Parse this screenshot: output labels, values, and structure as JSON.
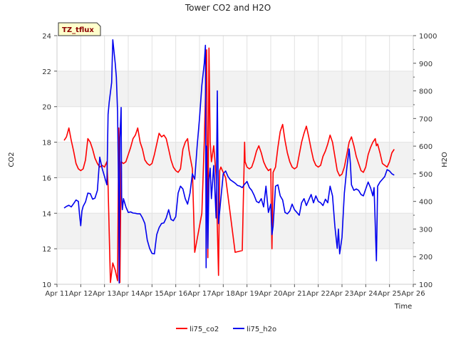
{
  "chart_data": {
    "type": "line",
    "title": "Tower CO2 and H2O",
    "badge": "TZ_tflux",
    "xlabel": "Time",
    "ylabel_left": "CO2",
    "ylabel_right": "H2O",
    "xlim": [
      0,
      15
    ],
    "ylim_left": [
      10,
      24
    ],
    "ylim_right": [
      100,
      1000
    ],
    "x_ticks": [
      {
        "pos": 0,
        "label": "Apr 11"
      },
      {
        "pos": 1,
        "label": "Apr 12"
      },
      {
        "pos": 2,
        "label": "Apr 13"
      },
      {
        "pos": 3,
        "label": "Apr 14"
      },
      {
        "pos": 4,
        "label": "Apr 15"
      },
      {
        "pos": 5,
        "label": "Apr 16"
      },
      {
        "pos": 6,
        "label": "Apr 17"
      },
      {
        "pos": 7,
        "label": "Apr 18"
      },
      {
        "pos": 8,
        "label": "Apr 19"
      },
      {
        "pos": 9,
        "label": "Apr 20"
      },
      {
        "pos": 10,
        "label": "Apr 21"
      },
      {
        "pos": 11,
        "label": "Apr 22"
      },
      {
        "pos": 12,
        "label": "Apr 23"
      },
      {
        "pos": 13,
        "label": "Apr 24"
      },
      {
        "pos": 14,
        "label": "Apr 25"
      },
      {
        "pos": 15,
        "label": "Apr 26"
      }
    ],
    "y_ticks_left": [
      "10",
      "12",
      "14",
      "16",
      "18",
      "20",
      "22",
      "24"
    ],
    "y_ticks_right": [
      "100",
      "200",
      "300",
      "400",
      "500",
      "600",
      "700",
      "800",
      "900",
      "1000"
    ],
    "grid": true,
    "legend_position": "bottom",
    "series": [
      {
        "name": "li75_co2",
        "axis": "left",
        "color": "#ff0000",
        "points": [
          [
            0.3,
            18.1
          ],
          [
            0.4,
            18.3
          ],
          [
            0.5,
            18.8
          ],
          [
            0.6,
            18.1
          ],
          [
            0.7,
            17.5
          ],
          [
            0.8,
            16.8
          ],
          [
            0.9,
            16.5
          ],
          [
            1.0,
            16.4
          ],
          [
            1.1,
            16.5
          ],
          [
            1.2,
            17.0
          ],
          [
            1.3,
            18.2
          ],
          [
            1.4,
            18.0
          ],
          [
            1.5,
            17.6
          ],
          [
            1.6,
            17.1
          ],
          [
            1.7,
            16.8
          ],
          [
            1.8,
            16.6
          ],
          [
            1.9,
            16.7
          ],
          [
            2.0,
            16.6
          ],
          [
            2.1,
            16.9
          ],
          [
            2.15,
            15.5
          ],
          [
            2.25,
            10.1
          ],
          [
            2.35,
            11.2
          ],
          [
            2.45,
            10.8
          ],
          [
            2.55,
            10.2
          ],
          [
            2.6,
            18.8
          ],
          [
            2.65,
            10.1
          ],
          [
            2.7,
            16.9
          ],
          [
            2.8,
            16.8
          ],
          [
            2.9,
            16.9
          ],
          [
            3.0,
            17.3
          ],
          [
            3.1,
            17.7
          ],
          [
            3.2,
            18.2
          ],
          [
            3.3,
            18.4
          ],
          [
            3.4,
            18.8
          ],
          [
            3.5,
            18.0
          ],
          [
            3.6,
            17.6
          ],
          [
            3.7,
            17.0
          ],
          [
            3.8,
            16.8
          ],
          [
            3.9,
            16.7
          ],
          [
            4.0,
            16.8
          ],
          [
            4.1,
            17.3
          ],
          [
            4.2,
            17.9
          ],
          [
            4.3,
            18.5
          ],
          [
            4.4,
            18.3
          ],
          [
            4.5,
            18.4
          ],
          [
            4.6,
            18.2
          ],
          [
            4.7,
            17.6
          ],
          [
            4.8,
            17.0
          ],
          [
            4.9,
            16.6
          ],
          [
            5.0,
            16.4
          ],
          [
            5.1,
            16.3
          ],
          [
            5.2,
            16.5
          ],
          [
            5.3,
            17.6
          ],
          [
            5.4,
            18.0
          ],
          [
            5.5,
            18.2
          ],
          [
            5.55,
            17.6
          ],
          [
            5.6,
            17.2
          ],
          [
            5.7,
            16.5
          ],
          [
            5.8,
            11.8
          ],
          [
            6.1,
            14.0
          ],
          [
            6.2,
            18.0
          ],
          [
            6.3,
            23.2
          ],
          [
            6.35,
            11.5
          ],
          [
            6.4,
            23.3
          ],
          [
            6.45,
            18.0
          ],
          [
            6.5,
            16.9
          ],
          [
            6.6,
            17.8
          ],
          [
            6.7,
            16.1
          ],
          [
            6.8,
            10.5
          ],
          [
            6.85,
            16.4
          ],
          [
            6.9,
            16.6
          ],
          [
            7.0,
            16.3
          ],
          [
            7.1,
            16.0
          ],
          [
            7.5,
            11.8
          ],
          [
            7.8,
            11.9
          ],
          [
            7.9,
            18.0
          ],
          [
            7.92,
            16.9
          ],
          [
            8.0,
            16.6
          ],
          [
            8.1,
            16.5
          ],
          [
            8.2,
            16.6
          ],
          [
            8.3,
            17.0
          ],
          [
            8.4,
            17.5
          ],
          [
            8.5,
            17.8
          ],
          [
            8.6,
            17.4
          ],
          [
            8.7,
            16.9
          ],
          [
            8.8,
            16.6
          ],
          [
            8.9,
            16.4
          ],
          [
            9.0,
            16.5
          ],
          [
            9.05,
            12.0
          ],
          [
            9.1,
            16.3
          ],
          [
            9.2,
            16.6
          ],
          [
            9.3,
            17.7
          ],
          [
            9.4,
            18.6
          ],
          [
            9.5,
            19.0
          ],
          [
            9.6,
            18.1
          ],
          [
            9.7,
            17.4
          ],
          [
            9.8,
            16.9
          ],
          [
            9.9,
            16.6
          ],
          [
            10.0,
            16.5
          ],
          [
            10.1,
            16.6
          ],
          [
            10.2,
            17.3
          ],
          [
            10.3,
            18.0
          ],
          [
            10.4,
            18.5
          ],
          [
            10.5,
            18.9
          ],
          [
            10.6,
            18.3
          ],
          [
            10.7,
            17.6
          ],
          [
            10.8,
            17.0
          ],
          [
            10.9,
            16.7
          ],
          [
            11.0,
            16.6
          ],
          [
            11.1,
            16.7
          ],
          [
            11.2,
            17.2
          ],
          [
            11.3,
            17.5
          ],
          [
            11.4,
            17.9
          ],
          [
            11.5,
            18.4
          ],
          [
            11.6,
            18.0
          ],
          [
            11.7,
            17.2
          ],
          [
            11.8,
            16.4
          ],
          [
            11.9,
            16.1
          ],
          [
            12.0,
            16.2
          ],
          [
            12.1,
            16.6
          ],
          [
            12.2,
            17.3
          ],
          [
            12.3,
            18.0
          ],
          [
            12.4,
            18.3
          ],
          [
            12.5,
            17.8
          ],
          [
            12.6,
            17.2
          ],
          [
            12.7,
            16.8
          ],
          [
            12.8,
            16.4
          ],
          [
            12.9,
            16.3
          ],
          [
            13.0,
            16.6
          ],
          [
            13.1,
            17.3
          ],
          [
            13.2,
            17.7
          ],
          [
            13.3,
            18.0
          ],
          [
            13.4,
            18.2
          ],
          [
            13.45,
            17.8
          ],
          [
            13.5,
            17.9
          ],
          [
            13.6,
            17.4
          ],
          [
            13.7,
            16.8
          ],
          [
            13.8,
            16.7
          ],
          [
            13.9,
            16.6
          ],
          [
            14.0,
            16.9
          ],
          [
            14.1,
            17.4
          ],
          [
            14.2,
            17.6
          ]
        ]
      },
      {
        "name": "li75_h2o",
        "axis": "right",
        "color": "#0000ee",
        "points": [
          [
            0.3,
            376
          ],
          [
            0.4,
            382
          ],
          [
            0.5,
            386
          ],
          [
            0.6,
            380
          ],
          [
            0.7,
            392
          ],
          [
            0.8,
            405
          ],
          [
            0.9,
            400
          ],
          [
            0.95,
            350
          ],
          [
            1.0,
            312
          ],
          [
            1.05,
            365
          ],
          [
            1.1,
            382
          ],
          [
            1.2,
            398
          ],
          [
            1.3,
            430
          ],
          [
            1.4,
            428
          ],
          [
            1.5,
            408
          ],
          [
            1.6,
            412
          ],
          [
            1.7,
            440
          ],
          [
            1.8,
            560
          ],
          [
            1.9,
            520
          ],
          [
            2.0,
            490
          ],
          [
            2.1,
            460
          ],
          [
            2.15,
            715
          ],
          [
            2.2,
            760
          ],
          [
            2.3,
            830
          ],
          [
            2.35,
            985
          ],
          [
            2.45,
            900
          ],
          [
            2.5,
            850
          ],
          [
            2.55,
            725
          ],
          [
            2.6,
            400
          ],
          [
            2.62,
            105
          ],
          [
            2.65,
            630
          ],
          [
            2.7,
            740
          ],
          [
            2.72,
            420
          ],
          [
            2.75,
            370
          ],
          [
            2.8,
            410
          ],
          [
            2.9,
            380
          ],
          [
            3.0,
            360
          ],
          [
            3.1,
            362
          ],
          [
            3.2,
            358
          ],
          [
            3.3,
            357
          ],
          [
            3.4,
            355
          ],
          [
            3.5,
            355
          ],
          [
            3.6,
            340
          ],
          [
            3.7,
            320
          ],
          [
            3.8,
            260
          ],
          [
            3.9,
            230
          ],
          [
            4.0,
            212
          ],
          [
            4.1,
            210
          ],
          [
            4.15,
            245
          ],
          [
            4.2,
            280
          ],
          [
            4.3,
            305
          ],
          [
            4.4,
            320
          ],
          [
            4.5,
            322
          ],
          [
            4.6,
            340
          ],
          [
            4.7,
            370
          ],
          [
            4.8,
            335
          ],
          [
            4.9,
            330
          ],
          [
            5.0,
            345
          ],
          [
            5.1,
            430
          ],
          [
            5.2,
            455
          ],
          [
            5.3,
            445
          ],
          [
            5.4,
            410
          ],
          [
            5.5,
            390
          ],
          [
            5.6,
            430
          ],
          [
            5.7,
            500
          ],
          [
            5.8,
            480
          ],
          [
            5.9,
            600
          ],
          [
            6.0,
            700
          ],
          [
            6.1,
            820
          ],
          [
            6.2,
            900
          ],
          [
            6.25,
            965
          ],
          [
            6.28,
            160
          ],
          [
            6.3,
            600
          ],
          [
            6.35,
            230
          ],
          [
            6.4,
            480
          ],
          [
            6.45,
            520
          ],
          [
            6.5,
            410
          ],
          [
            6.6,
            530
          ],
          [
            6.7,
            340
          ],
          [
            6.75,
            800
          ],
          [
            6.8,
            320
          ],
          [
            7.0,
            500
          ],
          [
            7.1,
            510
          ],
          [
            7.2,
            490
          ],
          [
            7.3,
            478
          ],
          [
            7.4,
            472
          ],
          [
            7.5,
            466
          ],
          [
            7.6,
            458
          ],
          [
            7.7,
            455
          ],
          [
            7.8,
            450
          ],
          [
            7.9,
            462
          ],
          [
            8.0,
            472
          ],
          [
            8.1,
            450
          ],
          [
            8.2,
            440
          ],
          [
            8.3,
            422
          ],
          [
            8.4,
            400
          ],
          [
            8.5,
            395
          ],
          [
            8.6,
            410
          ],
          [
            8.7,
            380
          ],
          [
            8.8,
            455
          ],
          [
            8.9,
            360
          ],
          [
            9.0,
            390
          ],
          [
            9.05,
            280
          ],
          [
            9.1,
            310
          ],
          [
            9.2,
            455
          ],
          [
            9.3,
            460
          ],
          [
            9.4,
            420
          ],
          [
            9.5,
            405
          ],
          [
            9.6,
            360
          ],
          [
            9.7,
            355
          ],
          [
            9.8,
            365
          ],
          [
            9.9,
            390
          ],
          [
            10.0,
            370
          ],
          [
            10.1,
            360
          ],
          [
            10.2,
            350
          ],
          [
            10.3,
            395
          ],
          [
            10.4,
            410
          ],
          [
            10.5,
            385
          ],
          [
            10.6,
            405
          ],
          [
            10.7,
            425
          ],
          [
            10.8,
            395
          ],
          [
            10.9,
            420
          ],
          [
            11.0,
            400
          ],
          [
            11.1,
            395
          ],
          [
            11.2,
            385
          ],
          [
            11.3,
            408
          ],
          [
            11.4,
            395
          ],
          [
            11.5,
            455
          ],
          [
            11.6,
            420
          ],
          [
            11.7,
            310
          ],
          [
            11.8,
            230
          ],
          [
            11.85,
            300
          ],
          [
            11.9,
            210
          ],
          [
            12.0,
            270
          ],
          [
            12.1,
            430
          ],
          [
            12.2,
            520
          ],
          [
            12.3,
            590
          ],
          [
            12.35,
            540
          ],
          [
            12.4,
            460
          ],
          [
            12.5,
            440
          ],
          [
            12.6,
            445
          ],
          [
            12.7,
            440
          ],
          [
            12.8,
            425
          ],
          [
            12.9,
            420
          ],
          [
            13.0,
            445
          ],
          [
            13.1,
            470
          ],
          [
            13.2,
            450
          ],
          [
            13.3,
            420
          ],
          [
            13.35,
            450
          ],
          [
            13.45,
            185
          ],
          [
            13.5,
            455
          ],
          [
            13.6,
            470
          ],
          [
            13.7,
            480
          ],
          [
            13.8,
            490
          ],
          [
            13.9,
            515
          ],
          [
            14.0,
            510
          ],
          [
            14.1,
            500
          ],
          [
            14.2,
            495
          ]
        ]
      }
    ]
  }
}
